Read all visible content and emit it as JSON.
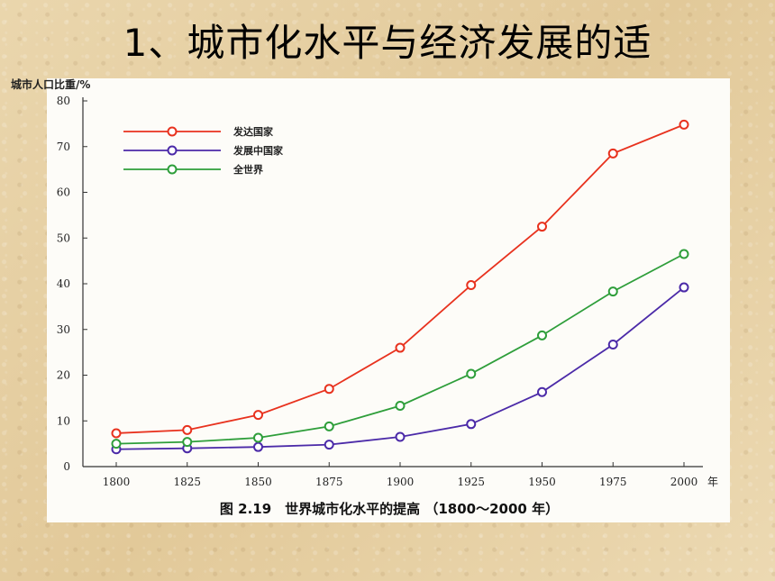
{
  "slide": {
    "title": "1、城市化水平与经济发展的适"
  },
  "chart_data": {
    "type": "line",
    "title": "",
    "caption": "图 2.19　世界城市化水平的提高 （1800～2000 年）",
    "ylabel": "城市人口比重/%",
    "xlabel": "年",
    "x": [
      1800,
      1825,
      1850,
      1875,
      1900,
      1925,
      1950,
      1975,
      2000
    ],
    "xlim": [
      1800,
      2000
    ],
    "ylim": [
      0,
      80
    ],
    "yticks": [
      0,
      10,
      20,
      30,
      40,
      50,
      60,
      70,
      80
    ],
    "grid": false,
    "legend_position": "top-left",
    "series": [
      {
        "name": "发达国家",
        "color": "#e8321e",
        "values": [
          7.3,
          8.0,
          11.3,
          17.0,
          26.0,
          39.7,
          52.5,
          68.5,
          74.8
        ]
      },
      {
        "name": "发展中国家",
        "color": "#4b2aa8",
        "values": [
          3.8,
          4.0,
          4.3,
          4.8,
          6.5,
          9.3,
          16.3,
          26.7,
          39.2
        ]
      },
      {
        "name": "全世界",
        "color": "#2e9e3a",
        "values": [
          5.0,
          5.4,
          6.3,
          8.8,
          13.3,
          20.3,
          28.7,
          38.3,
          46.5
        ]
      }
    ]
  }
}
